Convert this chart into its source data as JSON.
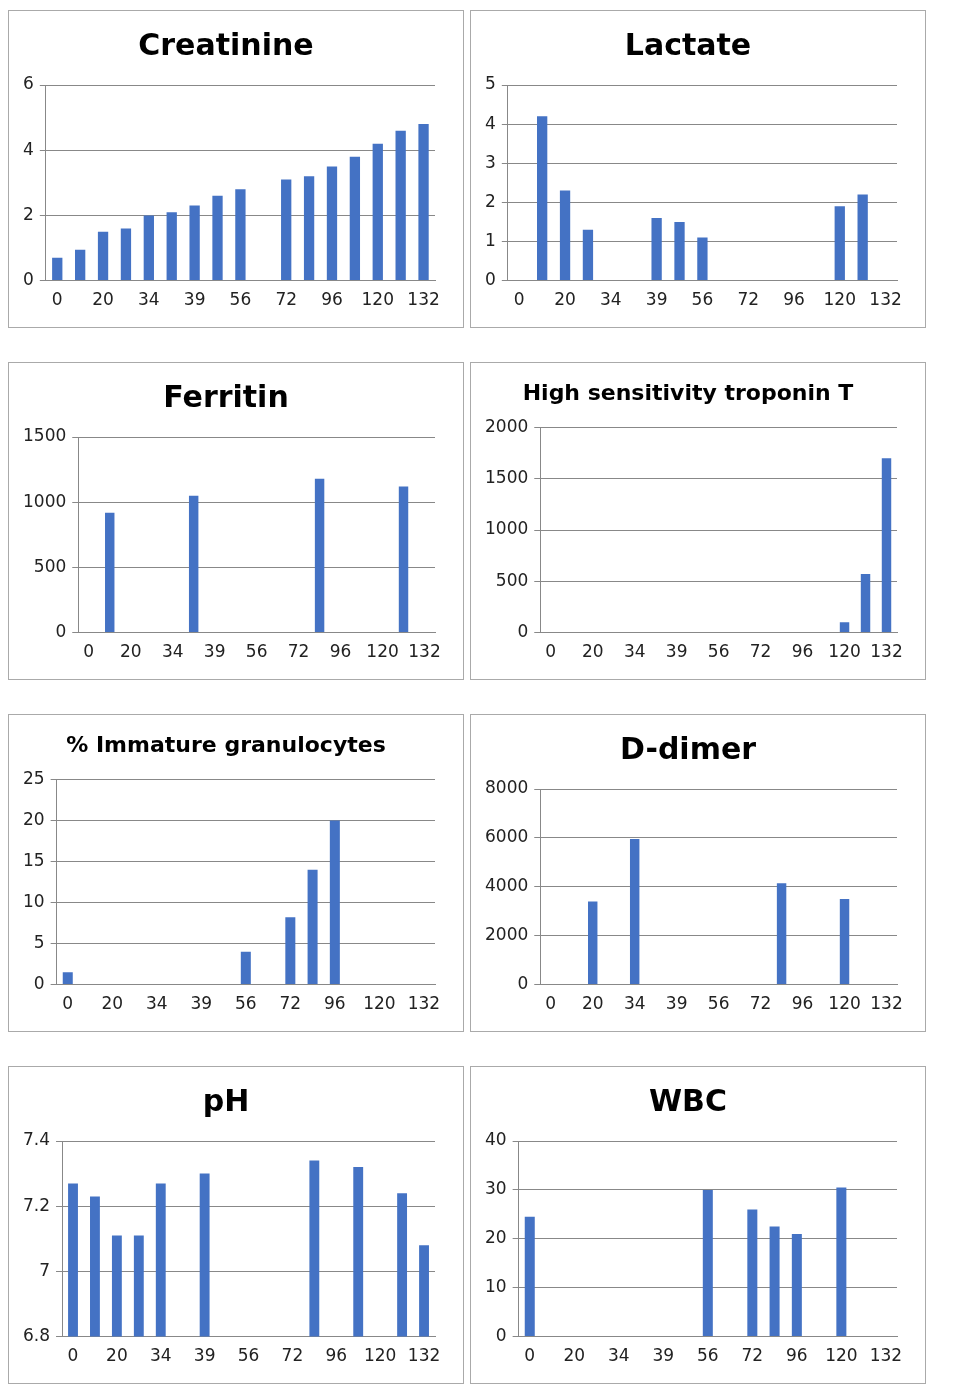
{
  "chart_data": [
    {
      "type": "bar",
      "title": "Creatinine",
      "categories": [
        "0",
        null,
        "20",
        null,
        "34",
        null,
        "39",
        null,
        "56",
        null,
        "72",
        null,
        "96",
        null,
        "120",
        null,
        "132"
      ],
      "values": [
        0.7,
        0.95,
        1.5,
        1.6,
        2.0,
        2.1,
        2.3,
        2.6,
        2.8,
        null,
        3.1,
        3.2,
        3.5,
        3.8,
        4.2,
        4.6,
        4.8
      ],
      "color": "#4472c4",
      "ylim": [
        0,
        6
      ],
      "yticks": [
        0,
        2,
        4,
        6
      ],
      "grid": "y"
    },
    {
      "type": "bar",
      "title": "Lactate",
      "categories": [
        "0",
        null,
        "20",
        null,
        "34",
        null,
        "39",
        null,
        "56",
        null,
        "72",
        null,
        "96",
        null,
        "120",
        null,
        "132"
      ],
      "values": [
        null,
        4.2,
        2.3,
        1.3,
        null,
        null,
        1.6,
        1.5,
        1.1,
        null,
        null,
        null,
        null,
        null,
        1.9,
        2.2,
        null
      ],
      "color": "#4472c4",
      "ylim": [
        0,
        5
      ],
      "yticks": [
        0,
        1,
        2,
        3,
        4,
        5
      ],
      "grid": "y"
    },
    {
      "type": "bar",
      "title": "Ferritin",
      "categories": [
        "0",
        null,
        "20",
        null,
        "34",
        null,
        "39",
        null,
        "56",
        null,
        "72",
        null,
        "96",
        null,
        "120",
        null,
        "132"
      ],
      "values": [
        null,
        920,
        null,
        null,
        null,
        1050,
        null,
        null,
        null,
        null,
        null,
        1180,
        null,
        null,
        null,
        1120,
        null
      ],
      "color": "#4472c4",
      "ylim": [
        0,
        1500
      ],
      "yticks": [
        0,
        500,
        1000,
        1500
      ],
      "grid": "y"
    },
    {
      "type": "bar",
      "title": "High sensitivity troponin T",
      "categories": [
        "0",
        null,
        "20",
        null,
        "34",
        null,
        "39",
        null,
        "56",
        null,
        "72",
        null,
        "96",
        null,
        "120",
        null,
        "132"
      ],
      "values": [
        null,
        null,
        null,
        null,
        null,
        null,
        null,
        null,
        null,
        null,
        null,
        null,
        null,
        null,
        100,
        570,
        1700
      ],
      "color": "#4472c4",
      "ylim": [
        0,
        2000
      ],
      "yticks": [
        0,
        500,
        1000,
        1500,
        2000
      ],
      "grid": "y"
    },
    {
      "type": "bar",
      "title": "% Immature granulocytes",
      "categories": [
        "0",
        null,
        "20",
        null,
        "34",
        null,
        "39",
        null,
        "56",
        null,
        "72",
        null,
        "96",
        null,
        "120",
        null,
        "132"
      ],
      "values": [
        1.5,
        null,
        null,
        null,
        null,
        null,
        null,
        null,
        4,
        null,
        8.2,
        14,
        20,
        null,
        null,
        null,
        null
      ],
      "color": "#4472c4",
      "ylim": [
        0,
        25
      ],
      "yticks": [
        0,
        5,
        10,
        15,
        20,
        25
      ],
      "grid": "y"
    },
    {
      "type": "bar",
      "title": "D-dimer",
      "categories": [
        "0",
        null,
        "20",
        null,
        "34",
        null,
        "39",
        null,
        "56",
        null,
        "72",
        null,
        "96",
        null,
        "120",
        null,
        "132"
      ],
      "values": [
        null,
        null,
        3400,
        null,
        5950,
        null,
        null,
        null,
        null,
        null,
        null,
        4150,
        null,
        null,
        3500,
        null,
        null
      ],
      "color": "#4472c4",
      "ylim": [
        0,
        8000
      ],
      "yticks": [
        0,
        2000,
        4000,
        6000,
        8000
      ],
      "grid": "y"
    },
    {
      "type": "bar",
      "title": "pH",
      "categories": [
        "0",
        null,
        "20",
        null,
        "34",
        null,
        "39",
        null,
        "56",
        null,
        "72",
        null,
        "96",
        null,
        "120",
        null,
        "132"
      ],
      "values": [
        7.27,
        7.23,
        7.11,
        7.11,
        7.27,
        null,
        7.3,
        null,
        null,
        null,
        null,
        7.34,
        null,
        7.32,
        null,
        7.24,
        7.08
      ],
      "color": "#4472c4",
      "ylim": [
        6.8,
        7.4
      ],
      "yticks": [
        6.8,
        7,
        7.2,
        7.4
      ],
      "grid": "y"
    },
    {
      "type": "bar",
      "title": "WBC",
      "categories": [
        "0",
        null,
        "20",
        null,
        "34",
        null,
        "39",
        null,
        "56",
        null,
        "72",
        null,
        "96",
        null,
        "120",
        null,
        "132"
      ],
      "values": [
        24.5,
        null,
        null,
        null,
        null,
        null,
        null,
        null,
        30,
        null,
        26,
        22.5,
        21,
        null,
        30.5,
        null,
        null
      ],
      "color": "#4472c4",
      "ylim": [
        0,
        40
      ],
      "yticks": [
        0,
        10,
        20,
        30,
        40
      ],
      "grid": "y"
    }
  ]
}
